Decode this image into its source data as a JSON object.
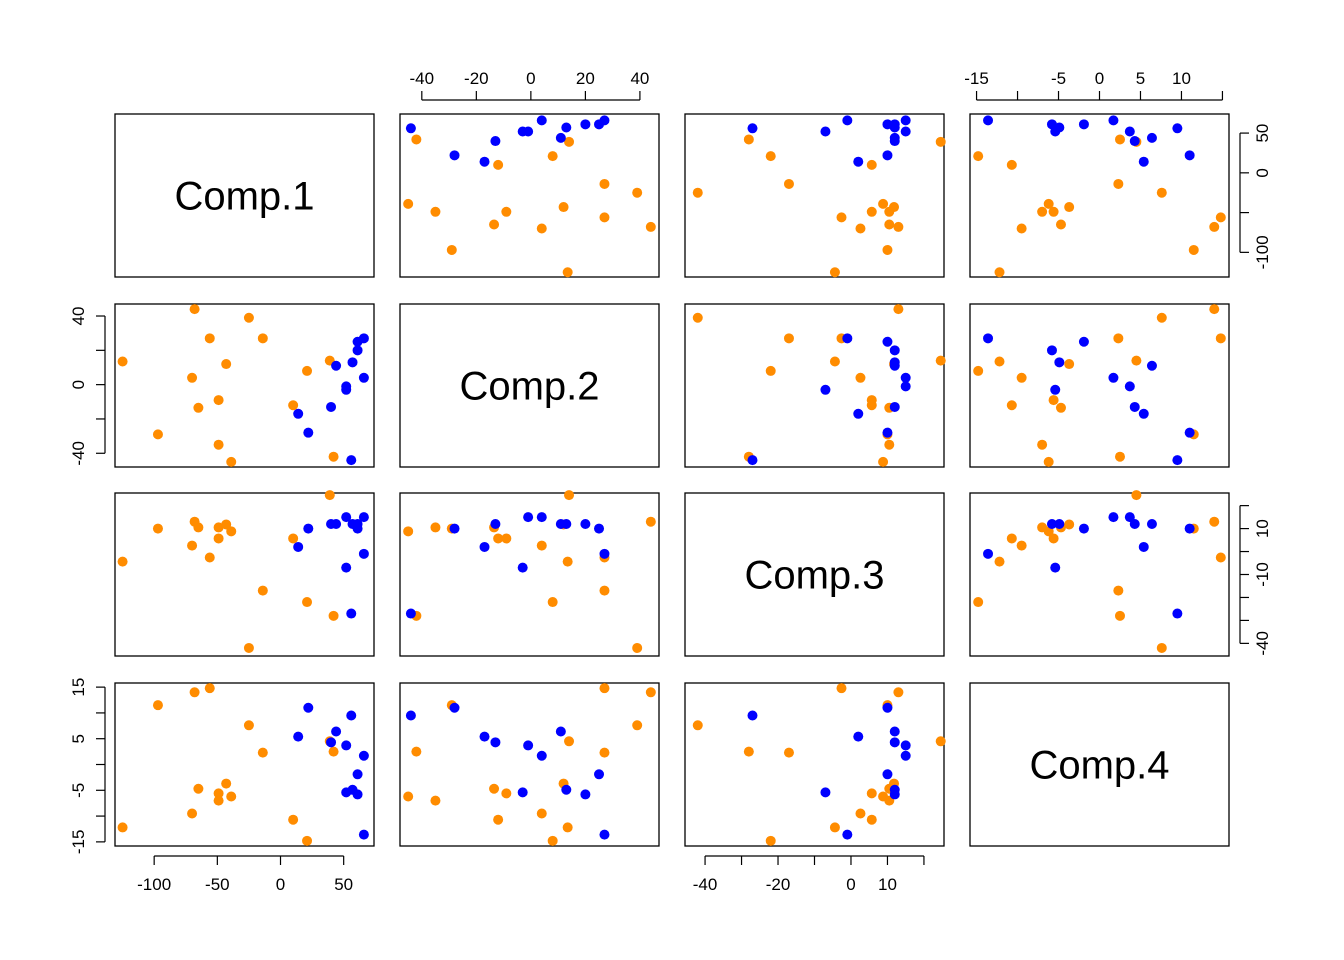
{
  "chart_data": {
    "type": "pairs",
    "variables": [
      {
        "name": "Comp.1",
        "lim": [
          -131,
          74
        ],
        "xticks": [
          -100,
          -50,
          0,
          50
        ],
        "xminor": [],
        "yticks": [
          -100,
          0,
          50
        ],
        "yminor": [
          -50
        ]
      },
      {
        "name": "Comp.2",
        "lim": [
          -48,
          47
        ],
        "xticks": [
          -40,
          -20,
          0,
          20,
          40
        ],
        "xminor": [],
        "yticks": [
          -40,
          0,
          40
        ],
        "yminor": [
          -20,
          20
        ]
      },
      {
        "name": "Comp.3",
        "lim": [
          -45.5,
          25.5
        ],
        "xticks": [
          -40,
          -20,
          0,
          10
        ],
        "xminor": [
          -30,
          -10,
          20
        ],
        "yticks": [
          -40,
          -10,
          10
        ],
        "yminor": [
          -30,
          -20,
          0,
          20
        ]
      },
      {
        "name": "Comp.4",
        "lim": [
          -15.8,
          15.8
        ],
        "xticks": [
          -15,
          -5,
          0,
          5,
          10
        ],
        "xminor": [
          -10,
          15
        ],
        "yticks": [
          -15,
          -5,
          5,
          15
        ],
        "yminor": [
          -10,
          0,
          10
        ]
      }
    ],
    "series": [
      {
        "color": "#ff8c00",
        "columns": [
          [
            -125,
            -97,
            -70,
            -68,
            -65,
            -56,
            -49,
            -49,
            -43,
            -39,
            -25,
            -14,
            10,
            21,
            39,
            42
          ],
          [
            13.5,
            -29,
            4,
            44,
            -13.5,
            27,
            -9,
            -35,
            12,
            -45,
            39,
            27,
            -12,
            8,
            14,
            -42
          ],
          [
            -4.4,
            10,
            2.6,
            13,
            10.5,
            -2.6,
            5.7,
            10.5,
            11.8,
            8.8,
            -42,
            -17,
            5.7,
            -22,
            24.6,
            -28
          ],
          [
            -12.2,
            11.5,
            -9.5,
            14,
            -4.7,
            14.8,
            -5.6,
            -7,
            -3.7,
            -6.2,
            7.6,
            2.3,
            -10.7,
            -14.8,
            4.5,
            2.5
          ]
        ]
      },
      {
        "color": "#0000ff",
        "columns": [
          [
            56,
            22,
            14,
            40,
            52,
            52,
            66,
            44,
            57,
            61,
            61,
            66
          ],
          [
            -44,
            -28,
            -17,
            -13,
            -3,
            -1,
            4,
            11,
            13,
            20,
            25,
            27
          ],
          [
            -27,
            10,
            2,
            12,
            -7,
            15,
            15,
            12,
            12,
            12,
            10,
            -1
          ],
          [
            9.5,
            11,
            5.4,
            4.3,
            -5.4,
            3.7,
            1.7,
            6.4,
            -4.9,
            -5.8,
            -1.9,
            -13.6
          ]
        ]
      }
    ]
  }
}
